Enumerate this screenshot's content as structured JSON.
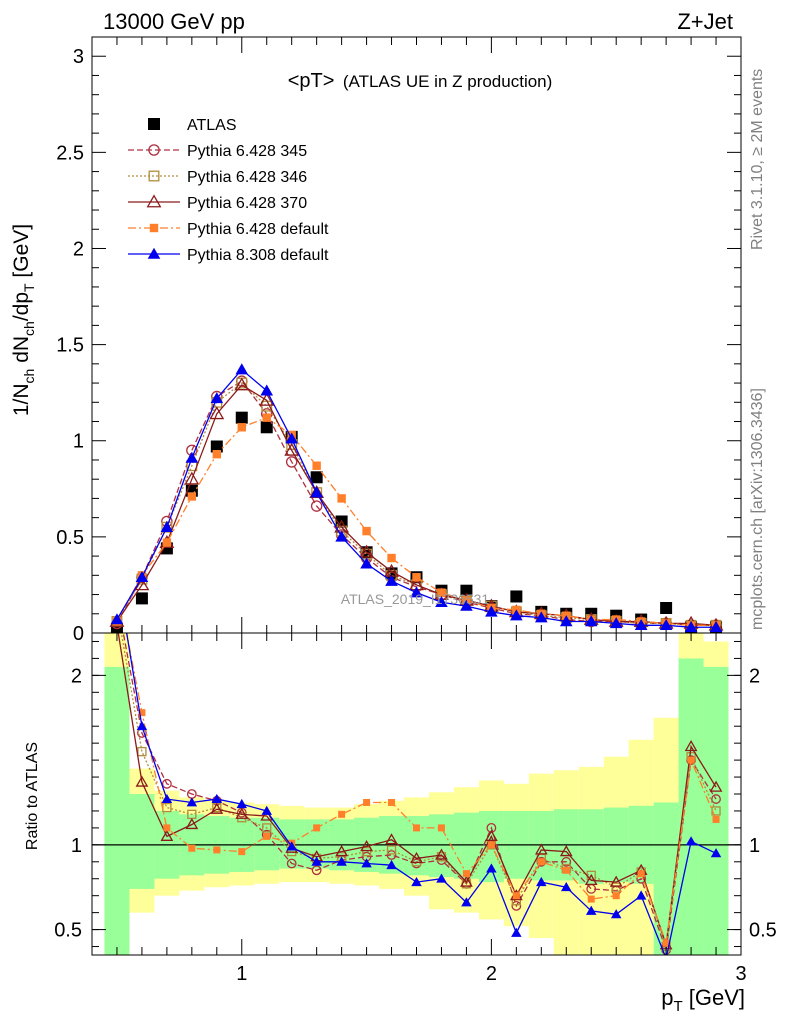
{
  "header": {
    "left": "13000 GeV pp",
    "right": "Z+Jet"
  },
  "side_text": {
    "rivet": "Rivet 3.1.10, ≥ 2M events",
    "mcplots": "mcplots.cern.ch [arXiv:1306.3436]"
  },
  "watermark": "ATLAS_2019_I1736531",
  "chart_data": [
    {
      "type": "scatter",
      "title_main": "<pT>",
      "title_sub": "(ATLAS UE in Z production)",
      "ylabel_text": "1/N",
      "ylabel_sub1": "ch",
      "ylabel_mid": " dN",
      "ylabel_sub2": "ch",
      "ylabel_tail": "/dp",
      "ylabel_sub3": "T",
      "ylabel_unit": " [GeV]",
      "xlim": [
        0.4,
        3.0
      ],
      "ylim": [
        0,
        3.1
      ],
      "yticks": [
        "0",
        "0.5",
        "1",
        "1.5",
        "2",
        "2.5",
        "3"
      ],
      "legend_position": "top-left",
      "x": [
        0.5,
        0.6,
        0.7,
        0.8,
        0.9,
        1.0,
        1.1,
        1.2,
        1.3,
        1.4,
        1.5,
        1.6,
        1.7,
        1.8,
        1.9,
        2.0,
        2.1,
        2.2,
        2.3,
        2.4,
        2.5,
        2.6,
        2.7,
        2.8,
        2.9
      ],
      "series": [
        {
          "name": "ATLAS",
          "color": "#000000",
          "marker": "filled-square",
          "style": "none",
          "values": [
            0.02,
            0.18,
            0.44,
            0.74,
            0.97,
            1.12,
            1.07,
            1.02,
            0.81,
            0.58,
            0.42,
            0.31,
            0.29,
            0.22,
            0.22,
            0.14,
            0.19,
            0.11,
            0.1,
            0.1,
            0.09,
            0.07,
            0.13,
            0.03,
            0.03
          ]
        },
        {
          "name": "Pythia 6.428 345",
          "color": "#b03040",
          "marker": "open-circle",
          "style": "dashed",
          "values": [
            0.05,
            0.29,
            0.58,
            0.95,
            1.23,
            1.31,
            1.14,
            0.89,
            0.66,
            0.51,
            0.39,
            0.29,
            0.24,
            0.2,
            0.16,
            0.13,
            0.1,
            0.09,
            0.07,
            0.06,
            0.06,
            0.05,
            0.05,
            0.04,
            0.04
          ]
        },
        {
          "name": "Pythia 6.428 346",
          "color": "#b08c3c",
          "marker": "open-square",
          "style": "dotted",
          "values": [
            0.06,
            0.28,
            0.55,
            0.87,
            1.2,
            1.3,
            1.18,
            0.98,
            0.73,
            0.53,
            0.41,
            0.3,
            0.25,
            0.2,
            0.17,
            0.14,
            0.11,
            0.09,
            0.08,
            0.07,
            0.06,
            0.05,
            0.05,
            0.04,
            0.04
          ]
        },
        {
          "name": "Pythia 6.428 370",
          "color": "#8b1a1a",
          "marker": "open-triangle",
          "style": "solid",
          "values": [
            0.06,
            0.25,
            0.47,
            0.8,
            1.14,
            1.29,
            1.21,
            0.95,
            0.73,
            0.55,
            0.42,
            0.32,
            0.25,
            0.2,
            0.17,
            0.14,
            0.11,
            0.1,
            0.09,
            0.07,
            0.06,
            0.06,
            0.05,
            0.05,
            0.04
          ]
        },
        {
          "name": "Pythia 6.428 default",
          "color": "#ff7f2a",
          "marker": "filled-square-small",
          "style": "dashdot",
          "values": [
            0.06,
            0.3,
            0.47,
            0.71,
            0.93,
            1.07,
            1.12,
            1.03,
            0.87,
            0.7,
            0.53,
            0.39,
            0.29,
            0.21,
            0.17,
            0.13,
            0.12,
            0.1,
            0.09,
            0.07,
            0.07,
            0.06,
            0.05,
            0.04,
            0.04
          ]
        },
        {
          "name": "Pythia 8.308 default",
          "color": "#0000ee",
          "marker": "filled-triangle",
          "style": "solid",
          "values": [
            0.07,
            0.29,
            0.55,
            0.91,
            1.22,
            1.37,
            1.26,
            1.01,
            0.73,
            0.5,
            0.36,
            0.27,
            0.21,
            0.16,
            0.14,
            0.11,
            0.09,
            0.08,
            0.06,
            0.06,
            0.05,
            0.04,
            0.04,
            0.03,
            0.03
          ]
        }
      ]
    },
    {
      "type": "line",
      "ylabel": "Ratio to ATLAS",
      "xlabel_main": "p",
      "xlabel_sub": "T",
      "xlabel_unit": " [GeV]",
      "xlim": [
        0.4,
        3.0
      ],
      "ylim": [
        0.35,
        2.25
      ],
      "xticks": [
        "1",
        "2",
        "3"
      ],
      "yticks": [
        "0.5",
        "1",
        "2"
      ],
      "x": [
        0.5,
        0.6,
        0.7,
        0.8,
        0.9,
        1.0,
        1.1,
        1.2,
        1.3,
        1.4,
        1.5,
        1.6,
        1.7,
        1.8,
        1.9,
        2.0,
        2.1,
        2.2,
        2.3,
        2.4,
        2.5,
        2.6,
        2.7,
        2.8,
        2.9
      ],
      "band_edges": [
        0.45,
        0.55,
        0.65,
        0.75,
        0.85,
        0.95,
        1.05,
        1.15,
        1.25,
        1.35,
        1.45,
        1.55,
        1.65,
        1.75,
        1.85,
        1.95,
        2.05,
        2.15,
        2.25,
        2.35,
        2.45,
        2.55,
        2.65,
        2.75,
        2.85,
        2.95
      ],
      "band_inner_lo": [
        0.35,
        0.74,
        0.8,
        0.82,
        0.83,
        0.84,
        0.85,
        0.86,
        0.86,
        0.85,
        0.84,
        0.83,
        0.82,
        0.81,
        0.8,
        0.78,
        0.8,
        0.79,
        0.79,
        0.77,
        0.78,
        0.77,
        0.35,
        0.35,
        0.35
      ],
      "band_inner_hi": [
        2.05,
        1.3,
        1.2,
        1.18,
        1.17,
        1.16,
        1.16,
        1.15,
        1.15,
        1.15,
        1.16,
        1.17,
        1.17,
        1.18,
        1.19,
        1.2,
        1.2,
        1.2,
        1.21,
        1.21,
        1.22,
        1.23,
        1.25,
        2.1,
        2.05
      ],
      "band_outer_lo": [
        0.35,
        0.6,
        0.7,
        0.73,
        0.75,
        0.76,
        0.77,
        0.78,
        0.78,
        0.77,
        0.76,
        0.74,
        0.7,
        0.62,
        0.6,
        0.56,
        0.52,
        0.45,
        0.35,
        0.35,
        0.35,
        0.35,
        0.35,
        0.35,
        0.35
      ],
      "band_outer_hi": [
        2.25,
        1.45,
        1.32,
        1.28,
        1.26,
        1.25,
        1.24,
        1.23,
        1.22,
        1.22,
        1.24,
        1.26,
        1.28,
        1.31,
        1.34,
        1.38,
        1.36,
        1.42,
        1.44,
        1.46,
        1.52,
        1.62,
        1.75,
        2.25,
        2.2
      ],
      "reference_line": 1,
      "series": [
        {
          "name": "Pythia 6.428 345",
          "color": "#b03040",
          "marker": "open-circle",
          "style": "dashed",
          "values": [
            2.45,
            1.66,
            1.36,
            1.3,
            1.26,
            1.19,
            1.06,
            0.89,
            0.85,
            0.91,
            0.93,
            0.94,
            0.89,
            0.91,
            0.77,
            1.1,
            0.64,
            0.9,
            0.9,
            0.74,
            0.73,
            0.8,
            0.38,
            1.5,
            1.27
          ]
        },
        {
          "name": "Pythia 6.428 346",
          "color": "#b08c3c",
          "marker": "open-square",
          "style": "dotted",
          "values": [
            2.4,
            1.55,
            1.22,
            1.18,
            1.22,
            1.16,
            1.1,
            0.96,
            0.92,
            0.93,
            0.96,
            0.97,
            0.9,
            0.93,
            0.77,
            1.0,
            0.67,
            0.92,
            0.86,
            0.82,
            0.75,
            0.84,
            0.4,
            1.52,
            1.2
          ]
        },
        {
          "name": "Pythia 6.428 370",
          "color": "#8b1a1a",
          "marker": "open-triangle",
          "style": "solid",
          "values": [
            2.3,
            1.37,
            1.05,
            1.12,
            1.21,
            1.18,
            1.17,
            0.98,
            0.93,
            0.96,
            0.99,
            1.03,
            0.92,
            0.94,
            0.78,
            1.05,
            0.7,
            0.97,
            0.96,
            0.79,
            0.78,
            0.85,
            0.41,
            1.58,
            1.34
          ]
        },
        {
          "name": "Pythia 6.428 default",
          "color": "#ff7f2a",
          "marker": "filled-square-small",
          "style": "dashdot",
          "values": [
            2.55,
            1.78,
            1.1,
            0.98,
            0.97,
            0.96,
            1.05,
            1.01,
            1.1,
            1.18,
            1.25,
            1.25,
            1.1,
            1.1,
            0.83,
            1.0,
            0.7,
            0.9,
            0.85,
            0.68,
            0.7,
            0.83,
            0.42,
            1.5,
            1.15
          ]
        },
        {
          "name": "Pythia 8.308 default",
          "color": "#0000ee",
          "marker": "filled-triangle",
          "style": "solid",
          "values": [
            2.6,
            1.7,
            1.27,
            1.25,
            1.27,
            1.24,
            1.2,
            0.99,
            0.9,
            0.9,
            0.89,
            0.88,
            0.78,
            0.8,
            0.66,
            0.86,
            0.48,
            0.78,
            0.75,
            0.61,
            0.59,
            0.7,
            0.33,
            1.02,
            0.95
          ]
        }
      ]
    }
  ]
}
